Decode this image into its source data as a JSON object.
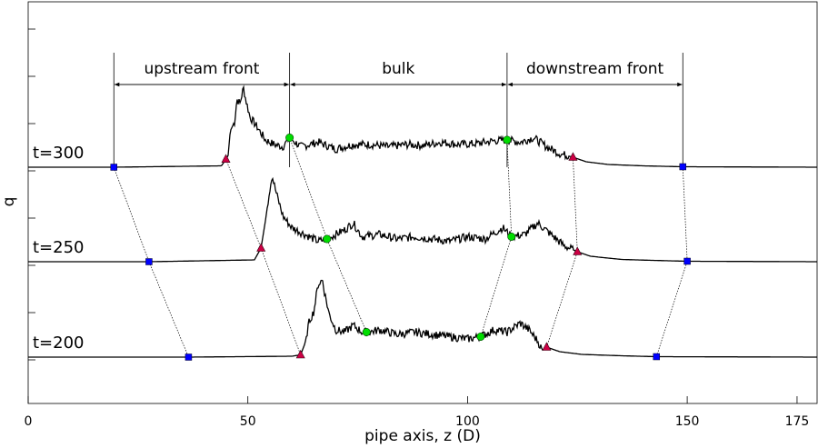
{
  "chart_data": {
    "type": "line",
    "title": "",
    "xlabel": "pipe axis, z (D)",
    "ylabel": "q",
    "xlim": [
      0,
      180
    ],
    "x_ticks": [
      0,
      50,
      100,
      150,
      175
    ],
    "y_ticks": 8,
    "grid": false,
    "region_labels": [
      {
        "label": "upstream front",
        "start": 19.5,
        "end": 59.5
      },
      {
        "label": "bulk",
        "start": 59.5,
        "end": 109
      },
      {
        "label": "downstream front",
        "start": 109,
        "end": 149
      }
    ],
    "series": [
      {
        "name": "t=300",
        "points": [
          {
            "z": 0,
            "q": 0
          },
          {
            "z": 19.5,
            "q": 0
          },
          {
            "z": 44,
            "q": 0.03
          },
          {
            "z": 45.5,
            "q": 0.25
          },
          {
            "z": 46,
            "q": 0.8
          },
          {
            "z": 47,
            "q": 1.0
          },
          {
            "z": 47.5,
            "q": 1.5
          },
          {
            "z": 48.2,
            "q": 1.4
          },
          {
            "z": 49,
            "q": 1.75
          },
          {
            "z": 49.5,
            "q": 1.5
          },
          {
            "z": 50.5,
            "q": 1.1
          },
          {
            "z": 52,
            "q": 0.9
          },
          {
            "z": 54,
            "q": 0.6
          },
          {
            "z": 56,
            "q": 0.5
          },
          {
            "z": 58,
            "q": 0.45
          },
          {
            "z": 59.5,
            "q": 0.65
          },
          {
            "z": 62,
            "q": 0.45
          },
          {
            "z": 66,
            "q": 0.55
          },
          {
            "z": 70,
            "q": 0.4
          },
          {
            "z": 74,
            "q": 0.5
          },
          {
            "z": 78,
            "q": 0.5
          },
          {
            "z": 82,
            "q": 0.45
          },
          {
            "z": 86,
            "q": 0.5
          },
          {
            "z": 90,
            "q": 0.48
          },
          {
            "z": 94,
            "q": 0.55
          },
          {
            "z": 98,
            "q": 0.5
          },
          {
            "z": 102,
            "q": 0.52
          },
          {
            "z": 106,
            "q": 0.58
          },
          {
            "z": 109,
            "q": 0.6
          },
          {
            "z": 112,
            "q": 0.55
          },
          {
            "z": 115,
            "q": 0.65
          },
          {
            "z": 118,
            "q": 0.45
          },
          {
            "z": 121,
            "q": 0.3
          },
          {
            "z": 124,
            "q": 0.22
          },
          {
            "z": 127,
            "q": 0.12
          },
          {
            "z": 132,
            "q": 0.06
          },
          {
            "z": 140,
            "q": 0.03
          },
          {
            "z": 149,
            "q": 0.01
          },
          {
            "z": 180,
            "q": 0
          }
        ],
        "markers": [
          {
            "shape": "square",
            "color": "#0000ff",
            "z": 19.5
          },
          {
            "shape": "triangle",
            "color": "#cc0044",
            "z": 45
          },
          {
            "shape": "circle",
            "color": "#00dd00",
            "z": 59.5
          },
          {
            "shape": "circle",
            "color": "#00dd00",
            "z": 109
          },
          {
            "shape": "triangle",
            "color": "#cc0044",
            "z": 124
          },
          {
            "shape": "square",
            "color": "#0000ff",
            "z": 149
          }
        ]
      },
      {
        "name": "t=250",
        "points": [
          {
            "z": 0,
            "q": 0
          },
          {
            "z": 27.5,
            "q": 0
          },
          {
            "z": 51.5,
            "q": 0.04
          },
          {
            "z": 53,
            "q": 0.3
          },
          {
            "z": 54,
            "q": 0.9
          },
          {
            "z": 55,
            "q": 1.6
          },
          {
            "z": 55.5,
            "q": 1.9
          },
          {
            "z": 56.5,
            "q": 1.5
          },
          {
            "z": 58,
            "q": 1.0
          },
          {
            "z": 60,
            "q": 0.75
          },
          {
            "z": 63,
            "q": 0.6
          },
          {
            "z": 66,
            "q": 0.45
          },
          {
            "z": 68,
            "q": 0.5
          },
          {
            "z": 72,
            "q": 0.7
          },
          {
            "z": 74,
            "q": 0.85
          },
          {
            "z": 76,
            "q": 0.55
          },
          {
            "z": 80,
            "q": 0.6
          },
          {
            "z": 84,
            "q": 0.5
          },
          {
            "z": 88,
            "q": 0.55
          },
          {
            "z": 92,
            "q": 0.5
          },
          {
            "z": 96,
            "q": 0.45
          },
          {
            "z": 100,
            "q": 0.55
          },
          {
            "z": 104,
            "q": 0.5
          },
          {
            "z": 108,
            "q": 0.75
          },
          {
            "z": 110,
            "q": 0.55
          },
          {
            "z": 113,
            "q": 0.6
          },
          {
            "z": 116,
            "q": 0.85
          },
          {
            "z": 119,
            "q": 0.6
          },
          {
            "z": 122,
            "q": 0.35
          },
          {
            "z": 125,
            "q": 0.22
          },
          {
            "z": 128,
            "q": 0.12
          },
          {
            "z": 135,
            "q": 0.05
          },
          {
            "z": 142,
            "q": 0.03
          },
          {
            "z": 150,
            "q": 0.01
          },
          {
            "z": 180,
            "q": 0
          }
        ],
        "markers": [
          {
            "shape": "square",
            "color": "#0000ff",
            "z": 27.5
          },
          {
            "shape": "triangle",
            "color": "#cc0044",
            "z": 53
          },
          {
            "shape": "circle",
            "color": "#00dd00",
            "z": 68
          },
          {
            "shape": "circle",
            "color": "#00dd00",
            "z": 110
          },
          {
            "shape": "triangle",
            "color": "#cc0044",
            "z": 125
          },
          {
            "shape": "square",
            "color": "#0000ff",
            "z": 150
          }
        ]
      },
      {
        "name": "t=200",
        "points": [
          {
            "z": 0,
            "q": 0
          },
          {
            "z": 36.5,
            "q": 0
          },
          {
            "z": 60,
            "q": 0.02
          },
          {
            "z": 62,
            "q": 0.05
          },
          {
            "z": 63,
            "q": 0.3
          },
          {
            "z": 64,
            "q": 0.8
          },
          {
            "z": 65,
            "q": 1.0
          },
          {
            "z": 66,
            "q": 1.6
          },
          {
            "z": 67,
            "q": 1.7
          },
          {
            "z": 67.5,
            "q": 1.4
          },
          {
            "z": 68.5,
            "q": 0.95
          },
          {
            "z": 70,
            "q": 0.6
          },
          {
            "z": 72,
            "q": 0.55
          },
          {
            "z": 74,
            "q": 0.7
          },
          {
            "z": 76,
            "q": 0.55
          },
          {
            "z": 77.5,
            "q": 0.55
          },
          {
            "z": 80,
            "q": 0.6
          },
          {
            "z": 84,
            "q": 0.5
          },
          {
            "z": 88,
            "q": 0.55
          },
          {
            "z": 92,
            "q": 0.5
          },
          {
            "z": 96,
            "q": 0.45
          },
          {
            "z": 100,
            "q": 0.4
          },
          {
            "z": 103,
            "q": 0.45
          },
          {
            "z": 106,
            "q": 0.6
          },
          {
            "z": 109,
            "q": 0.55
          },
          {
            "z": 112,
            "q": 0.75
          },
          {
            "z": 114,
            "q": 0.6
          },
          {
            "z": 116,
            "q": 0.35
          },
          {
            "z": 117,
            "q": 0.15
          },
          {
            "z": 118,
            "q": 0.22
          },
          {
            "z": 121,
            "q": 0.12
          },
          {
            "z": 126,
            "q": 0.06
          },
          {
            "z": 135,
            "q": 0.03
          },
          {
            "z": 143,
            "q": 0.01
          },
          {
            "z": 180,
            "q": 0
          }
        ],
        "markers": [
          {
            "shape": "square",
            "color": "#0000ff",
            "z": 36.5
          },
          {
            "shape": "triangle",
            "color": "#cc0044",
            "z": 62
          },
          {
            "shape": "circle",
            "color": "#00dd00",
            "z": 77
          },
          {
            "shape": "circle",
            "color": "#00dd00",
            "z": 103
          },
          {
            "shape": "triangle",
            "color": "#cc0044",
            "z": 118
          },
          {
            "shape": "square",
            "color": "#0000ff",
            "z": 143
          }
        ]
      }
    ],
    "line_color": "#000000"
  }
}
